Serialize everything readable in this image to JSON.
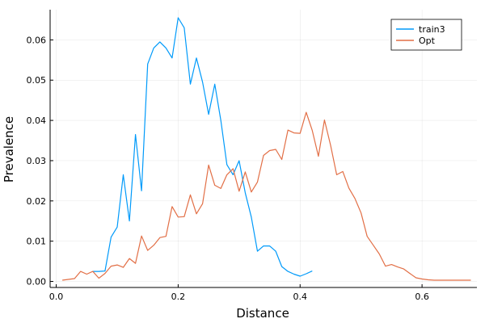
{
  "chart_data": {
    "type": "line",
    "xlabel": "Distance",
    "ylabel": "Prevalence",
    "xlim": [
      -0.01,
      0.69
    ],
    "ylim": [
      -0.0015,
      0.0675
    ],
    "x_ticks": [
      "0.0",
      "0.2",
      "0.4",
      "0.6"
    ],
    "y_ticks": [
      "0.00",
      "0.01",
      "0.02",
      "0.03",
      "0.04",
      "0.05",
      "0.06"
    ],
    "grid": true,
    "legend_position": "top-right",
    "series": [
      {
        "name": "train3",
        "color": "#009AFA",
        "x": [
          0.06,
          0.07,
          0.08,
          0.09,
          0.1,
          0.11,
          0.12,
          0.13,
          0.14,
          0.15,
          0.16,
          0.17,
          0.18,
          0.19,
          0.2,
          0.21,
          0.22,
          0.23,
          0.24,
          0.25,
          0.26,
          0.27,
          0.28,
          0.29,
          0.3,
          0.31,
          0.32,
          0.33,
          0.34,
          0.35,
          0.36,
          0.37,
          0.38,
          0.39,
          0.4,
          0.41,
          0.42
        ],
        "values": [
          0.0025,
          0.0025,
          0.0026,
          0.011,
          0.0135,
          0.0265,
          0.015,
          0.0365,
          0.0225,
          0.054,
          0.058,
          0.0595,
          0.058,
          0.0555,
          0.0655,
          0.063,
          0.049,
          0.0555,
          0.0495,
          0.0415,
          0.049,
          0.04,
          0.029,
          0.0265,
          0.03,
          0.022,
          0.016,
          0.0075,
          0.0088,
          0.0088,
          0.0075,
          0.0037,
          0.0025,
          0.0018,
          0.0013,
          0.0019,
          0.0026
        ]
      },
      {
        "name": "Opt",
        "color": "#E26F46",
        "x": [
          0.01,
          0.02,
          0.03,
          0.04,
          0.05,
          0.06,
          0.07,
          0.08,
          0.09,
          0.1,
          0.11,
          0.12,
          0.13,
          0.14,
          0.15,
          0.16,
          0.17,
          0.18,
          0.19,
          0.2,
          0.21,
          0.22,
          0.23,
          0.24,
          0.25,
          0.26,
          0.27,
          0.28,
          0.29,
          0.3,
          0.31,
          0.32,
          0.33,
          0.34,
          0.35,
          0.36,
          0.37,
          0.38,
          0.39,
          0.4,
          0.41,
          0.42,
          0.43,
          0.44,
          0.45,
          0.46,
          0.47,
          0.48,
          0.49,
          0.5,
          0.51,
          0.52,
          0.53,
          0.54,
          0.55,
          0.56,
          0.57,
          0.58,
          0.59,
          0.6,
          0.61,
          0.62,
          0.63,
          0.64,
          0.65,
          0.66,
          0.67,
          0.68
        ],
        "values": [
          0.0003,
          0.0005,
          0.0007,
          0.0025,
          0.0018,
          0.0025,
          0.0008,
          0.002,
          0.0038,
          0.0041,
          0.0035,
          0.0057,
          0.0045,
          0.0113,
          0.0077,
          0.009,
          0.0109,
          0.0112,
          0.0186,
          0.016,
          0.0161,
          0.0215,
          0.0168,
          0.0193,
          0.0289,
          0.0239,
          0.0231,
          0.0265,
          0.028,
          0.0224,
          0.0272,
          0.0222,
          0.0247,
          0.0313,
          0.0325,
          0.0328,
          0.0303,
          0.0376,
          0.0369,
          0.0368,
          0.042,
          0.0375,
          0.0311,
          0.0401,
          0.0338,
          0.0265,
          0.0273,
          0.0232,
          0.0206,
          0.017,
          0.0112,
          0.009,
          0.0068,
          0.0038,
          0.0042,
          0.0036,
          0.0031,
          0.002,
          0.0009,
          0.0006,
          0.0004,
          0.0003,
          0.0003,
          0.0003,
          0.0003,
          0.0003,
          0.0003,
          0.0003
        ]
      }
    ]
  }
}
